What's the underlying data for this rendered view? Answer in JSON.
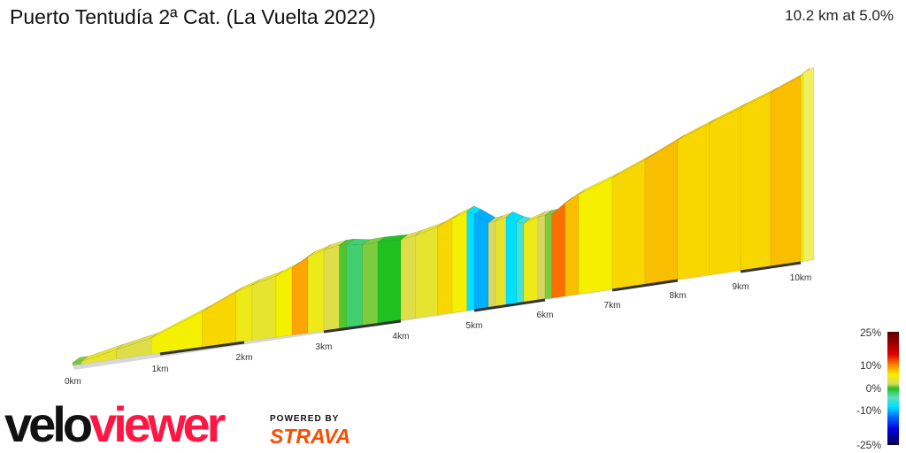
{
  "header": {
    "title": "Puerto Tentudía 2ª Cat. (La Vuelta 2022)",
    "summary": "10.2 km at 5.0%"
  },
  "branding": {
    "logo_part1": "velo",
    "logo_part2": "viewer",
    "powered_by": "POWERED BY",
    "strava": "STRAVA",
    "logo_color1": "#111111",
    "logo_color2": "#ff1744",
    "strava_color": "#fc4c02"
  },
  "chart_data": {
    "type": "area",
    "style": "3d gradient-colored elevation profile",
    "x_unit": "km",
    "x_ticks": [
      "0km",
      "1km",
      "2km",
      "3km",
      "4km",
      "5km",
      "6km",
      "7km",
      "8km",
      "9km",
      "10km"
    ],
    "distance_km": 10.2,
    "segments": [
      [
        0,
        0.1,
        1
      ],
      [
        0.1,
        0.5,
        4
      ],
      [
        0.5,
        0.9,
        3
      ],
      [
        0.9,
        1.5,
        6
      ],
      [
        1.5,
        1.9,
        7
      ],
      [
        1.9,
        2.1,
        5
      ],
      [
        2.1,
        2.4,
        4
      ],
      [
        2.4,
        2.6,
        6
      ],
      [
        2.6,
        2.8,
        9
      ],
      [
        2.8,
        3.0,
        5
      ],
      [
        3.0,
        3.2,
        3
      ],
      [
        3.2,
        3.3,
        0.5
      ],
      [
        3.3,
        3.5,
        -2
      ],
      [
        3.5,
        3.7,
        1
      ],
      [
        3.7,
        4.0,
        0
      ],
      [
        4.0,
        4.2,
        3
      ],
      [
        4.2,
        4.5,
        4
      ],
      [
        4.5,
        4.7,
        7
      ],
      [
        4.7,
        4.9,
        6
      ],
      [
        4.9,
        5.0,
        -8
      ],
      [
        5.0,
        5.2,
        -10
      ],
      [
        5.2,
        5.3,
        2
      ],
      [
        5.3,
        5.45,
        4
      ],
      [
        5.45,
        5.6,
        -8
      ],
      [
        5.6,
        5.7,
        -5
      ],
      [
        5.7,
        5.9,
        5
      ],
      [
        5.9,
        6.0,
        2
      ],
      [
        6.0,
        6.1,
        1
      ],
      [
        6.1,
        6.3,
        11
      ],
      [
        6.3,
        6.5,
        8
      ],
      [
        6.5,
        7.0,
        6
      ],
      [
        7.0,
        7.5,
        7
      ],
      [
        7.5,
        8.0,
        8
      ],
      [
        8.0,
        8.5,
        7
      ],
      [
        8.5,
        9.0,
        7
      ],
      [
        9.0,
        9.5,
        7
      ],
      [
        9.5,
        10.0,
        8
      ],
      [
        10.0,
        10.2,
        6
      ]
    ],
    "legend": {
      "labels": [
        "25%",
        "10%",
        "0%",
        "-10%",
        "-25%"
      ],
      "stops": [
        [
          25,
          "#5a0000"
        ],
        [
          15,
          "#e00000"
        ],
        [
          10,
          "#ff8c00"
        ],
        [
          6,
          "#f5f000"
        ],
        [
          2,
          "#d8d860"
        ],
        [
          0,
          "#20c020"
        ],
        [
          -4,
          "#60e0c0"
        ],
        [
          -8,
          "#00e0ff"
        ],
        [
          -13,
          "#0060ff"
        ],
        [
          -18,
          "#0000e0"
        ],
        [
          -25,
          "#000050"
        ]
      ]
    }
  }
}
